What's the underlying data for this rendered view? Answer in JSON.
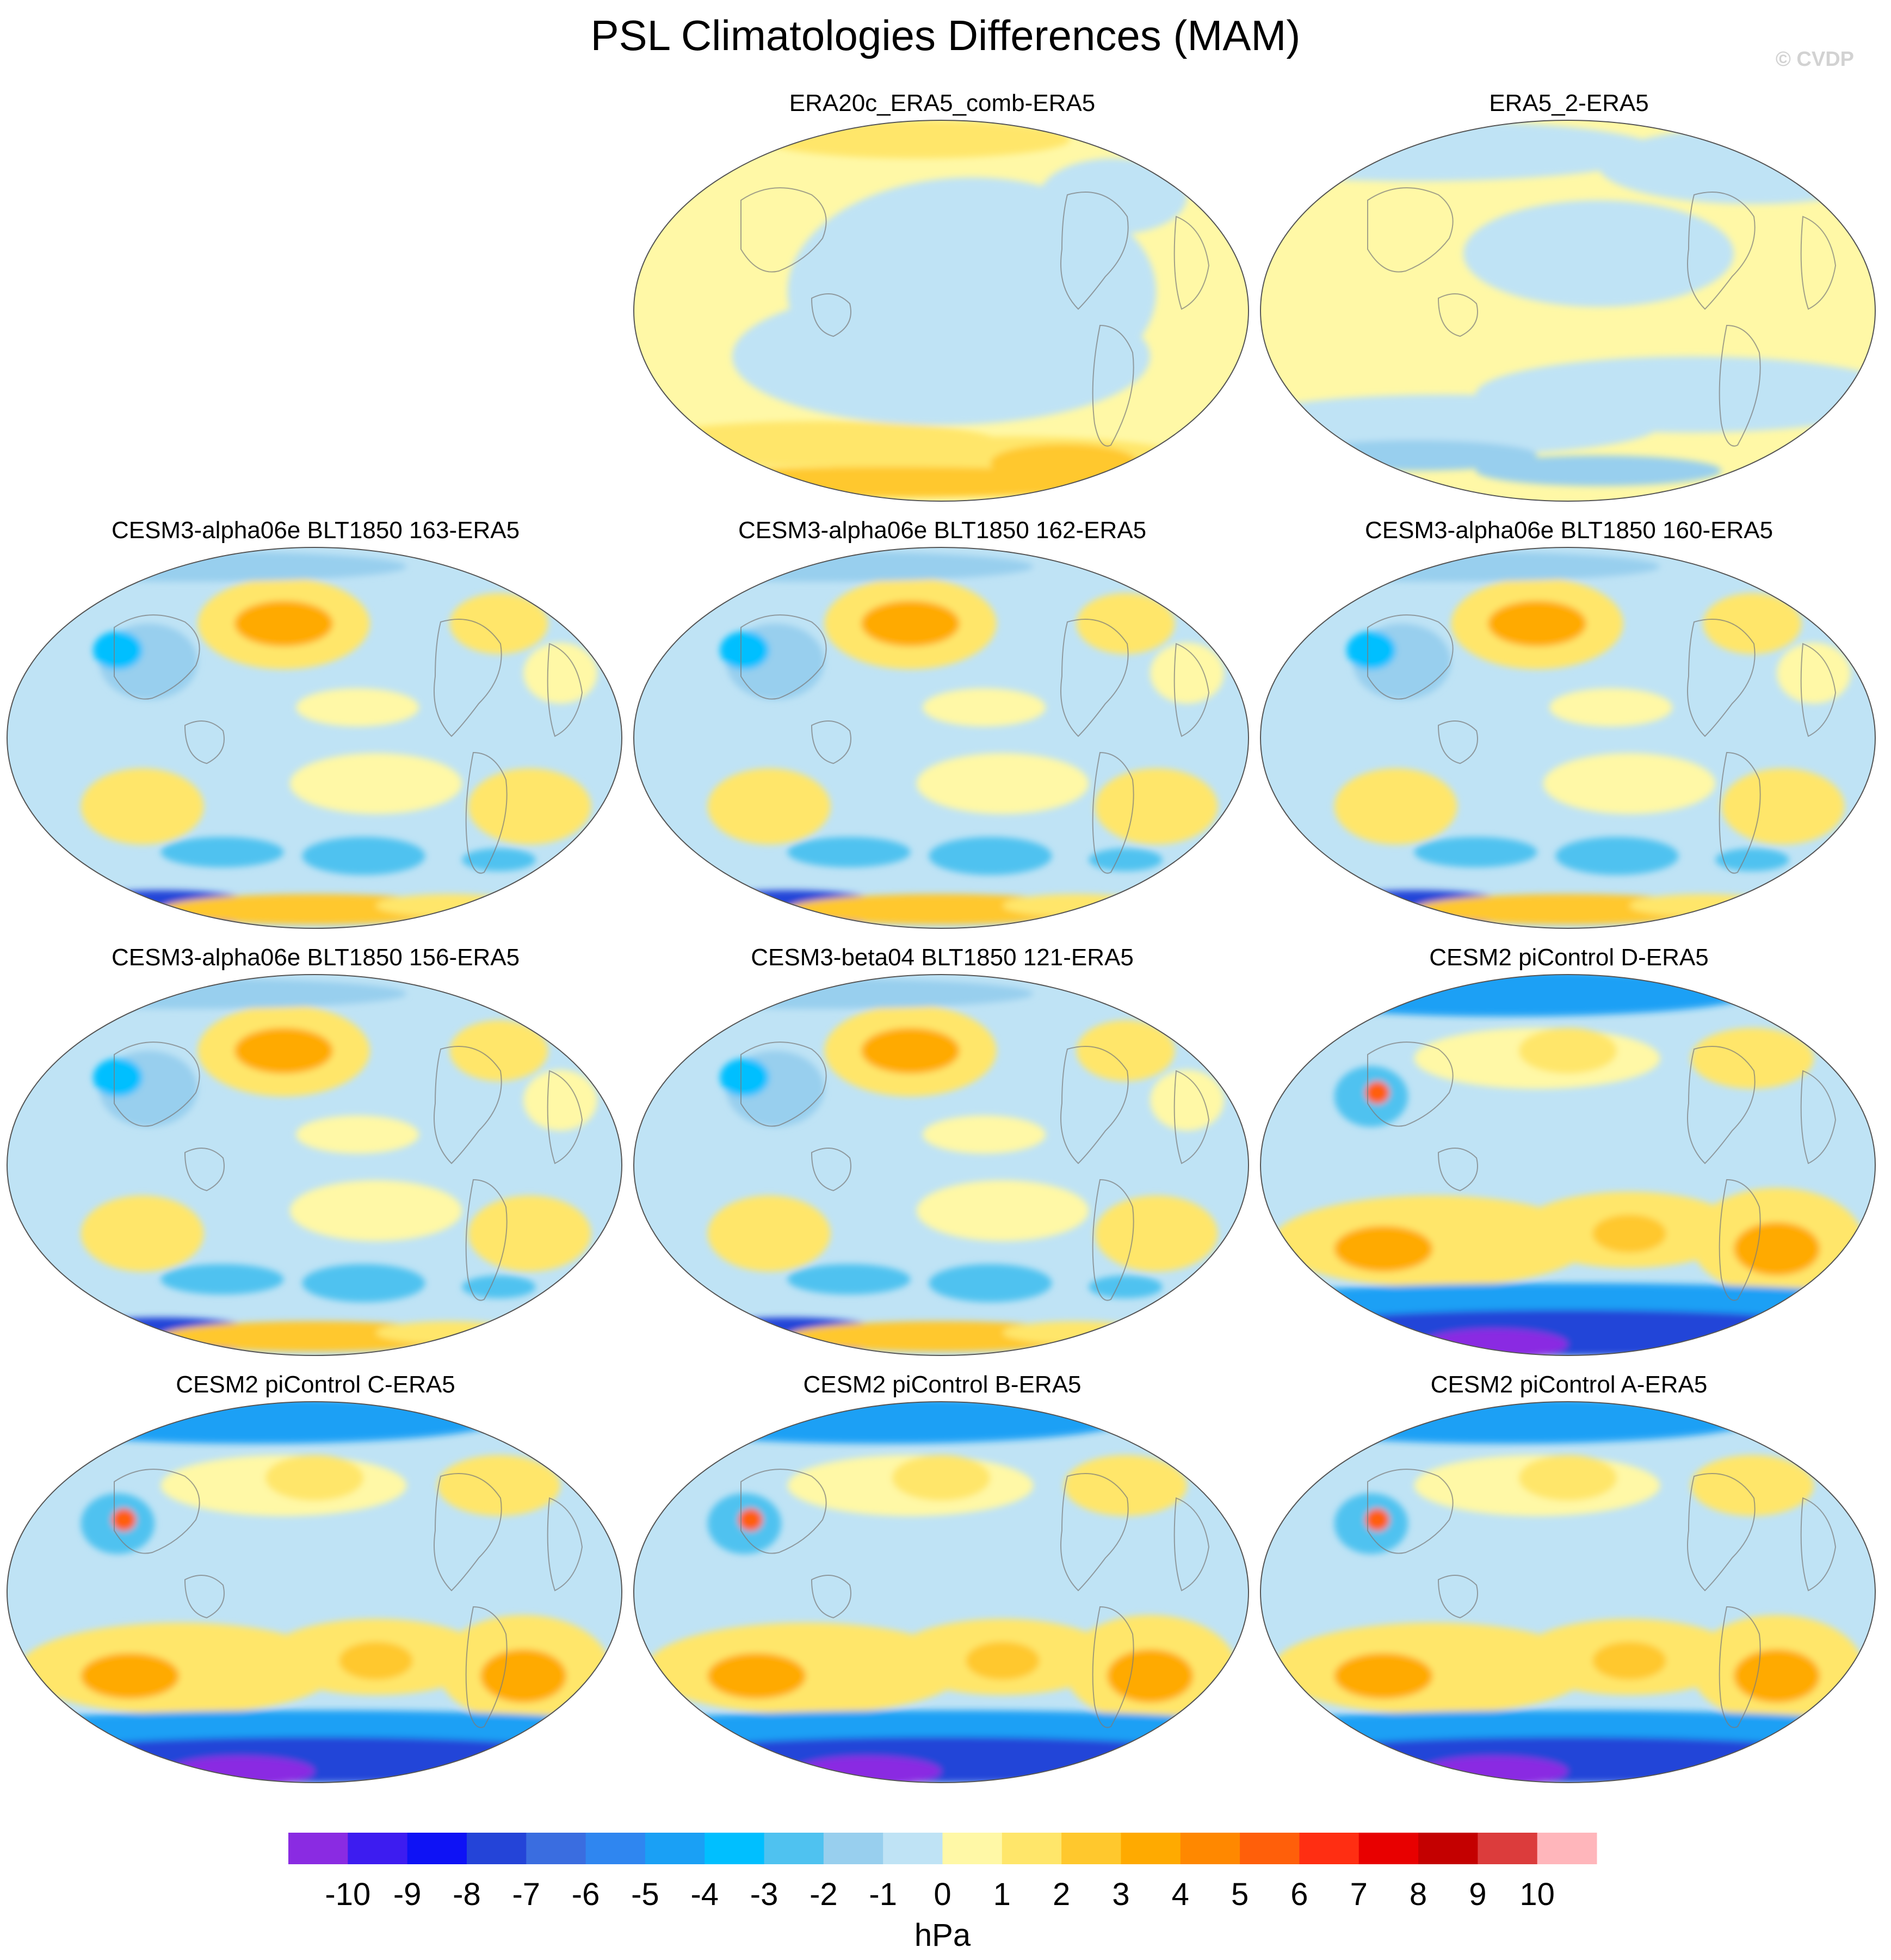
{
  "title": "PSL Climatologies Differences (MAM)",
  "watermark": "© CVDP",
  "chart_data": {
    "type": "heatmap",
    "variable": "PSL",
    "season": "MAM",
    "projection": "Robinson (global, Pacific-centered)",
    "panels": [
      {
        "label": "ERA20c_ERA5_comb-ERA5",
        "pattern": "reanalysis-a"
      },
      {
        "label": "ERA5_2-ERA5",
        "pattern": "reanalysis-b"
      },
      {
        "label": "CESM3-alpha06e BLT1850 163-ERA5",
        "pattern": "cesm3"
      },
      {
        "label": "CESM3-alpha06e BLT1850 162-ERA5",
        "pattern": "cesm3"
      },
      {
        "label": "CESM3-alpha06e BLT1850 160-ERA5",
        "pattern": "cesm3"
      },
      {
        "label": "CESM3-alpha06e BLT1850 156-ERA5",
        "pattern": "cesm3"
      },
      {
        "label": "CESM3-beta04 BLT1850 121-ERA5",
        "pattern": "cesm3"
      },
      {
        "label": "CESM2 piControl D-ERA5",
        "pattern": "cesm2"
      },
      {
        "label": "CESM2 piControl C-ERA5",
        "pattern": "cesm2"
      },
      {
        "label": "CESM2 piControl B-ERA5",
        "pattern": "cesm2"
      },
      {
        "label": "CESM2 piControl A-ERA5",
        "pattern": "cesm2"
      }
    ],
    "colorbar": {
      "label": "hPa",
      "ticks": [
        "-10",
        "-9",
        "-8",
        "-7",
        "-6",
        "-5",
        "-4",
        "-3",
        "-2",
        "-1",
        "0",
        "1",
        "2",
        "3",
        "4",
        "5",
        "6",
        "7",
        "8",
        "9",
        "10"
      ],
      "colors": [
        "#8a2be2",
        "#3d1cf0",
        "#0e12f5",
        "#2444d8",
        "#3a6de0",
        "#2f86f0",
        "#1aa0f5",
        "#00bfff",
        "#4fc2f0",
        "#98cfee",
        "#bfe3f5",
        "#fff8a6",
        "#ffe66a",
        "#ffc82d",
        "#ffaa00",
        "#ff8800",
        "#ff5f0a",
        "#ff2e12",
        "#e80000",
        "#c40000",
        "#dc3c3c",
        "#ffb6bb"
      ]
    }
  }
}
